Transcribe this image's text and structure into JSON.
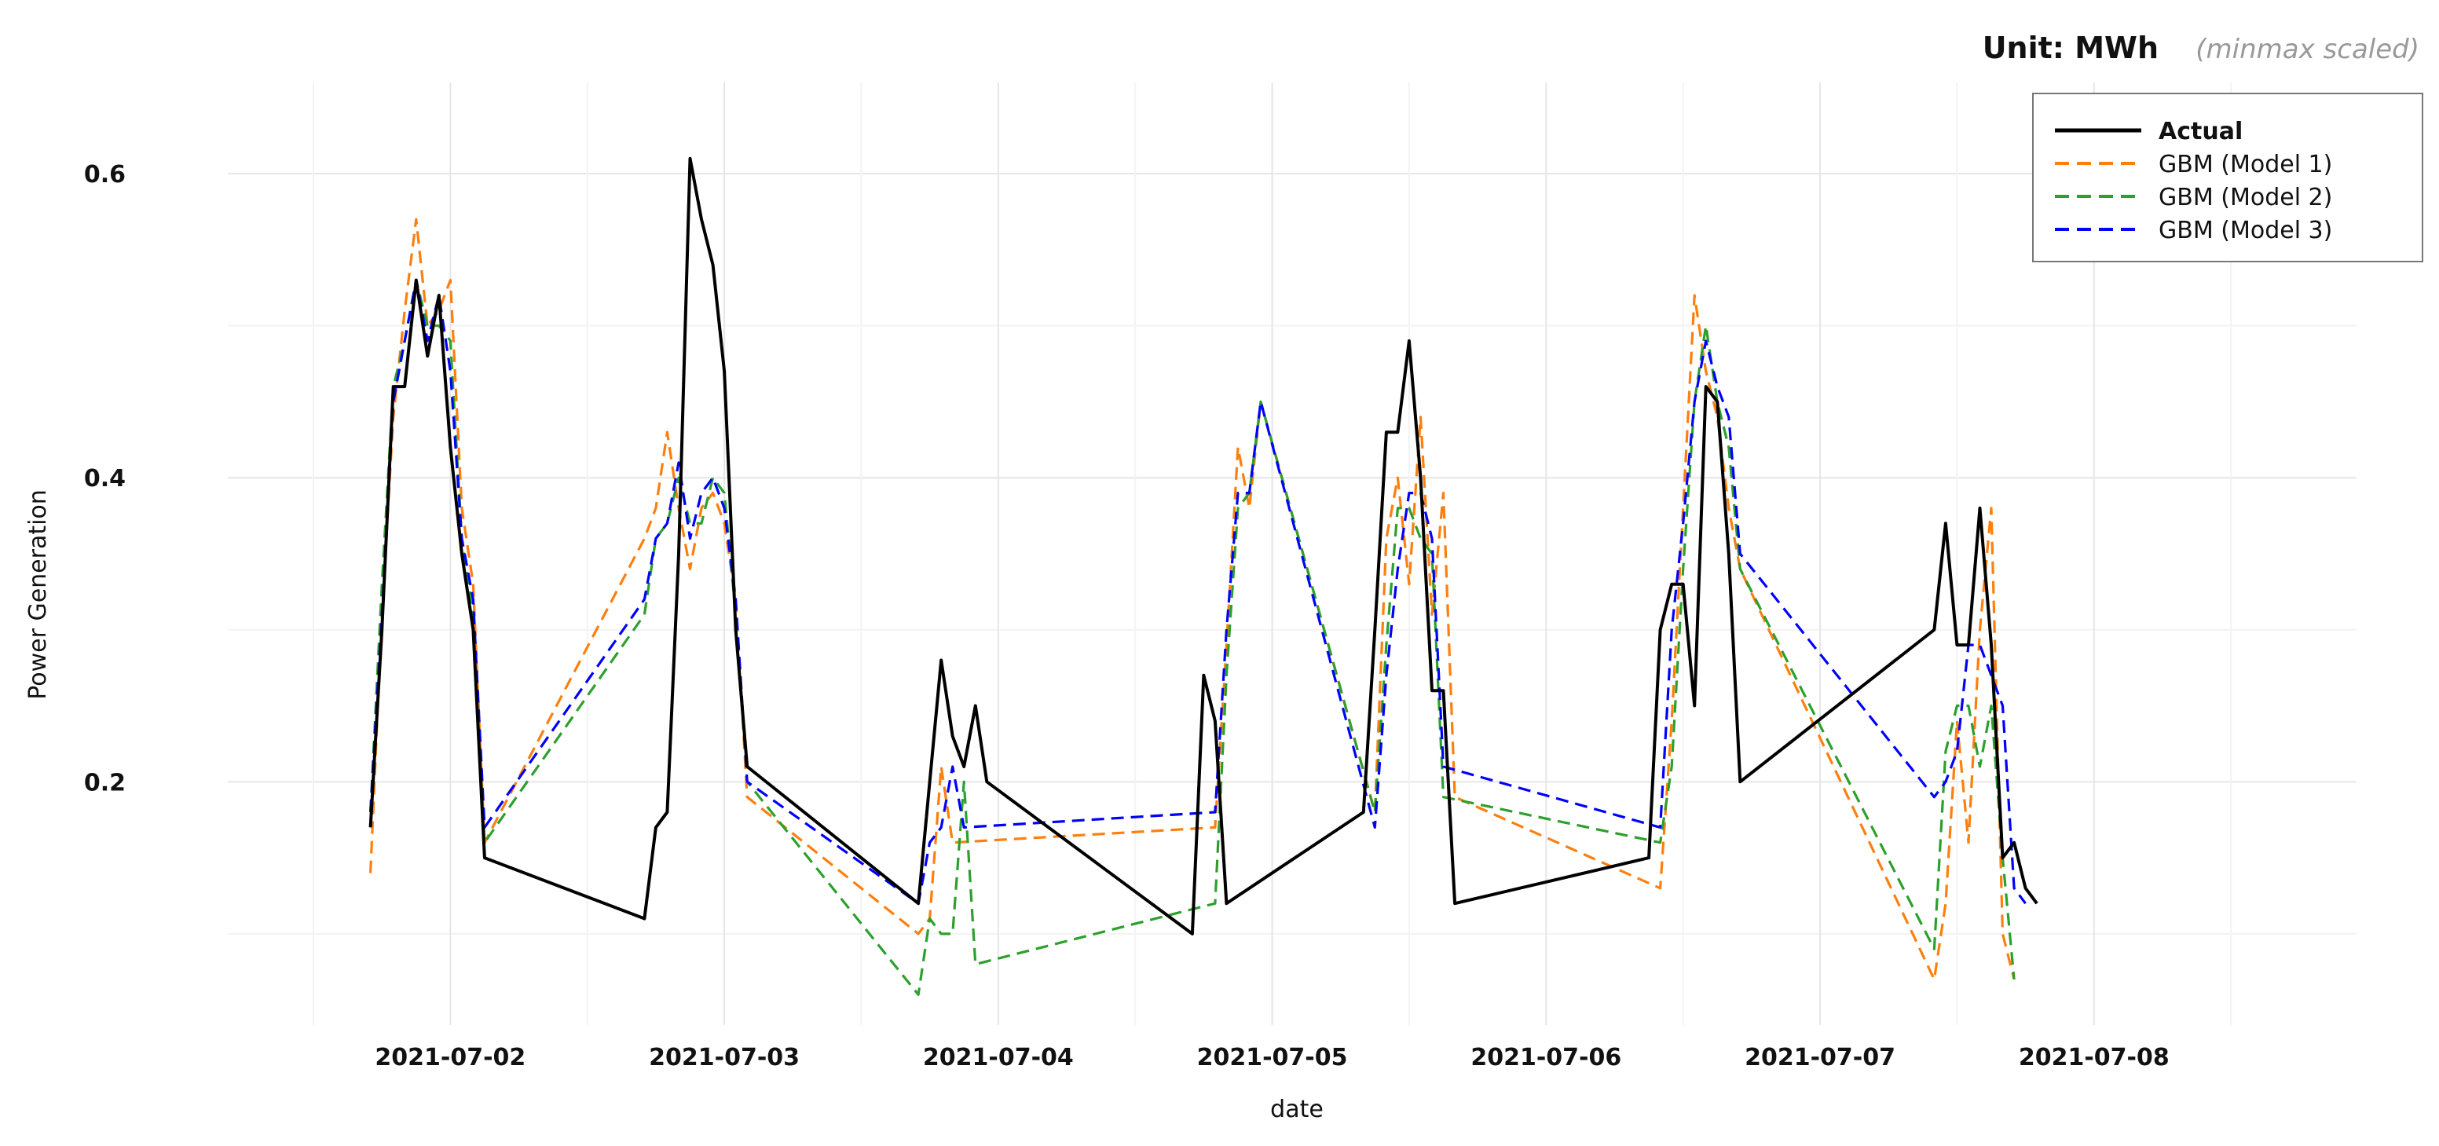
{
  "header": {
    "unit_label": "Unit: MWh",
    "unit_note": "(minmax scaled)"
  },
  "chart_data": {
    "type": "line",
    "title": "",
    "xlabel": "date",
    "ylabel": "Power Generation",
    "x_ticks": [
      "2021-07-02",
      "2021-07-03",
      "2021-07-04",
      "2021-07-05",
      "2021-07-06",
      "2021-07-07",
      "2021-07-08"
    ],
    "y_ticks": [
      "0.2",
      "0.4",
      "0.6"
    ],
    "y_tick_values": [
      0.2,
      0.4,
      0.6
    ],
    "xlim": [
      "2021-07-01 04:30",
      "2021-07-08 23:00"
    ],
    "ylim": [
      0.04,
      0.66
    ],
    "grid": true,
    "legend_position": "top-right",
    "series": [
      {
        "name": "Actual",
        "color": "#000000",
        "dash": "solid",
        "points": [
          [
            "2021-07-01 17:00",
            0.17
          ],
          [
            "2021-07-01 18:00",
            0.3
          ],
          [
            "2021-07-01 19:00",
            0.46
          ],
          [
            "2021-07-01 20:00",
            0.46
          ],
          [
            "2021-07-01 21:00",
            0.53
          ],
          [
            "2021-07-01 22:00",
            0.48
          ],
          [
            "2021-07-01 23:00",
            0.52
          ],
          [
            "2021-07-02 00:00",
            0.42
          ],
          [
            "2021-07-02 01:00",
            0.35
          ],
          [
            "2021-07-02 02:00",
            0.3
          ],
          [
            "2021-07-02 03:00",
            0.15
          ],
          [
            "2021-07-02 17:00",
            0.11
          ],
          [
            "2021-07-02 18:00",
            0.17
          ],
          [
            "2021-07-02 19:00",
            0.18
          ],
          [
            "2021-07-02 20:00",
            0.35
          ],
          [
            "2021-07-02 21:00",
            0.61
          ],
          [
            "2021-07-02 22:00",
            0.57
          ],
          [
            "2021-07-02 23:00",
            0.54
          ],
          [
            "2021-07-03 00:00",
            0.47
          ],
          [
            "2021-07-03 01:00",
            0.3
          ],
          [
            "2021-07-03 02:00",
            0.21
          ],
          [
            "2021-07-03 17:00",
            0.12
          ],
          [
            "2021-07-03 18:00",
            0.2
          ],
          [
            "2021-07-03 19:00",
            0.28
          ],
          [
            "2021-07-03 20:00",
            0.23
          ],
          [
            "2021-07-03 21:00",
            0.21
          ],
          [
            "2021-07-03 22:00",
            0.25
          ],
          [
            "2021-07-03 23:00",
            0.2
          ],
          [
            "2021-07-04 17:00",
            0.1
          ],
          [
            "2021-07-04 18:00",
            0.27
          ],
          [
            "2021-07-04 19:00",
            0.24
          ],
          [
            "2021-07-04 20:00",
            0.12
          ],
          [
            "2021-07-05 08:00",
            0.18
          ],
          [
            "2021-07-05 09:00",
            0.3
          ],
          [
            "2021-07-05 10:00",
            0.43
          ],
          [
            "2021-07-05 11:00",
            0.43
          ],
          [
            "2021-07-05 12:00",
            0.49
          ],
          [
            "2021-07-05 13:00",
            0.4
          ],
          [
            "2021-07-05 14:00",
            0.26
          ],
          [
            "2021-07-05 15:00",
            0.26
          ],
          [
            "2021-07-05 16:00",
            0.12
          ],
          [
            "2021-07-06 09:00",
            0.15
          ],
          [
            "2021-07-06 10:00",
            0.3
          ],
          [
            "2021-07-06 11:00",
            0.33
          ],
          [
            "2021-07-06 12:00",
            0.33
          ],
          [
            "2021-07-06 13:00",
            0.25
          ],
          [
            "2021-07-06 14:00",
            0.46
          ],
          [
            "2021-07-06 15:00",
            0.45
          ],
          [
            "2021-07-06 16:00",
            0.35
          ],
          [
            "2021-07-06 17:00",
            0.2
          ],
          [
            "2021-07-07 10:00",
            0.3
          ],
          [
            "2021-07-07 11:00",
            0.37
          ],
          [
            "2021-07-07 12:00",
            0.29
          ],
          [
            "2021-07-07 13:00",
            0.29
          ],
          [
            "2021-07-07 14:00",
            0.38
          ],
          [
            "2021-07-07 15:00",
            0.29
          ],
          [
            "2021-07-07 16:00",
            0.15
          ],
          [
            "2021-07-07 17:00",
            0.16
          ],
          [
            "2021-07-07 18:00",
            0.13
          ],
          [
            "2021-07-07 19:00",
            0.12
          ]
        ]
      },
      {
        "name": "GBM (Model 1)",
        "color": "#ff7f0e",
        "dash": "dashed",
        "points": [
          [
            "2021-07-01 17:00",
            0.14
          ],
          [
            "2021-07-01 18:00",
            0.31
          ],
          [
            "2021-07-01 19:00",
            0.44
          ],
          [
            "2021-07-01 20:00",
            0.51
          ],
          [
            "2021-07-01 21:00",
            0.57
          ],
          [
            "2021-07-01 22:00",
            0.5
          ],
          [
            "2021-07-01 23:00",
            0.51
          ],
          [
            "2021-07-02 00:00",
            0.53
          ],
          [
            "2021-07-02 01:00",
            0.38
          ],
          [
            "2021-07-02 02:00",
            0.33
          ],
          [
            "2021-07-02 03:00",
            0.16
          ],
          [
            "2021-07-02 17:00",
            0.36
          ],
          [
            "2021-07-02 18:00",
            0.38
          ],
          [
            "2021-07-02 19:00",
            0.43
          ],
          [
            "2021-07-02 20:00",
            0.38
          ],
          [
            "2021-07-02 21:00",
            0.34
          ],
          [
            "2021-07-02 22:00",
            0.38
          ],
          [
            "2021-07-02 23:00",
            0.39
          ],
          [
            "2021-07-03 00:00",
            0.37
          ],
          [
            "2021-07-03 01:00",
            0.32
          ],
          [
            "2021-07-03 02:00",
            0.19
          ],
          [
            "2021-07-03 17:00",
            0.1
          ],
          [
            "2021-07-03 18:00",
            0.11
          ],
          [
            "2021-07-03 19:00",
            0.21
          ],
          [
            "2021-07-03 20:00",
            0.16
          ],
          [
            "2021-07-04 19:00",
            0.17
          ],
          [
            "2021-07-04 20:00",
            0.29
          ],
          [
            "2021-07-04 21:00",
            0.42
          ],
          [
            "2021-07-04 22:00",
            0.38
          ],
          [
            "2021-07-04 23:00",
            0.45
          ],
          [
            "2021-07-05 09:00",
            0.18
          ],
          [
            "2021-07-05 10:00",
            0.36
          ],
          [
            "2021-07-05 11:00",
            0.4
          ],
          [
            "2021-07-05 12:00",
            0.33
          ],
          [
            "2021-07-05 13:00",
            0.44
          ],
          [
            "2021-07-05 14:00",
            0.31
          ],
          [
            "2021-07-05 15:00",
            0.39
          ],
          [
            "2021-07-05 16:00",
            0.19
          ],
          [
            "2021-07-06 10:00",
            0.13
          ],
          [
            "2021-07-06 11:00",
            0.24
          ],
          [
            "2021-07-06 12:00",
            0.38
          ],
          [
            "2021-07-06 13:00",
            0.52
          ],
          [
            "2021-07-06 14:00",
            0.47
          ],
          [
            "2021-07-06 15:00",
            0.44
          ],
          [
            "2021-07-06 16:00",
            0.38
          ],
          [
            "2021-07-06 17:00",
            0.34
          ],
          [
            "2021-07-07 10:00",
            0.07
          ],
          [
            "2021-07-07 11:00",
            0.12
          ],
          [
            "2021-07-07 12:00",
            0.24
          ],
          [
            "2021-07-07 13:00",
            0.16
          ],
          [
            "2021-07-07 14:00",
            0.3
          ],
          [
            "2021-07-07 15:00",
            0.38
          ],
          [
            "2021-07-07 16:00",
            0.1
          ],
          [
            "2021-07-07 17:00",
            0.07
          ]
        ]
      },
      {
        "name": "GBM (Model 2)",
        "color": "#2ca02c",
        "dash": "dashed",
        "points": [
          [
            "2021-07-01 17:00",
            0.18
          ],
          [
            "2021-07-01 18:00",
            0.33
          ],
          [
            "2021-07-01 19:00",
            0.46
          ],
          [
            "2021-07-01 20:00",
            0.49
          ],
          [
            "2021-07-01 21:00",
            0.53
          ],
          [
            "2021-07-01 22:00",
            0.5
          ],
          [
            "2021-07-01 23:00",
            0.5
          ],
          [
            "2021-07-02 00:00",
            0.49
          ],
          [
            "2021-07-02 01:00",
            0.36
          ],
          [
            "2021-07-02 02:00",
            0.31
          ],
          [
            "2021-07-02 03:00",
            0.16
          ],
          [
            "2021-07-02 17:00",
            0.31
          ],
          [
            "2021-07-02 18:00",
            0.36
          ],
          [
            "2021-07-02 19:00",
            0.37
          ],
          [
            "2021-07-02 20:00",
            0.4
          ],
          [
            "2021-07-02 21:00",
            0.37
          ],
          [
            "2021-07-02 22:00",
            0.37
          ],
          [
            "2021-07-02 23:00",
            0.4
          ],
          [
            "2021-07-03 00:00",
            0.39
          ],
          [
            "2021-07-03 01:00",
            0.31
          ],
          [
            "2021-07-03 02:00",
            0.2
          ],
          [
            "2021-07-03 17:00",
            0.06
          ],
          [
            "2021-07-03 18:00",
            0.11
          ],
          [
            "2021-07-03 19:00",
            0.1
          ],
          [
            "2021-07-03 20:00",
            0.1
          ],
          [
            "2021-07-03 21:00",
            0.2
          ],
          [
            "2021-07-03 22:00",
            0.08
          ],
          [
            "2021-07-04 19:00",
            0.12
          ],
          [
            "2021-07-04 20:00",
            0.27
          ],
          [
            "2021-07-04 21:00",
            0.38
          ],
          [
            "2021-07-04 22:00",
            0.39
          ],
          [
            "2021-07-04 23:00",
            0.45
          ],
          [
            "2021-07-05 09:00",
            0.18
          ],
          [
            "2021-07-05 10:00",
            0.29
          ],
          [
            "2021-07-05 11:00",
            0.38
          ],
          [
            "2021-07-05 12:00",
            0.38
          ],
          [
            "2021-07-05 13:00",
            0.36
          ],
          [
            "2021-07-05 14:00",
            0.35
          ],
          [
            "2021-07-05 15:00",
            0.19
          ],
          [
            "2021-07-06 10:00",
            0.16
          ],
          [
            "2021-07-06 11:00",
            0.21
          ],
          [
            "2021-07-06 12:00",
            0.34
          ],
          [
            "2021-07-06 13:00",
            0.45
          ],
          [
            "2021-07-06 14:00",
            0.5
          ],
          [
            "2021-07-06 15:00",
            0.45
          ],
          [
            "2021-07-06 16:00",
            0.42
          ],
          [
            "2021-07-06 17:00",
            0.34
          ],
          [
            "2021-07-07 10:00",
            0.09
          ],
          [
            "2021-07-07 11:00",
            0.22
          ],
          [
            "2021-07-07 12:00",
            0.25
          ],
          [
            "2021-07-07 13:00",
            0.25
          ],
          [
            "2021-07-07 14:00",
            0.21
          ],
          [
            "2021-07-07 15:00",
            0.25
          ],
          [
            "2021-07-07 16:00",
            0.15
          ],
          [
            "2021-07-07 17:00",
            0.07
          ]
        ]
      },
      {
        "name": "GBM (Model 3)",
        "color": "#0000ff",
        "dash": "dashed",
        "points": [
          [
            "2021-07-01 17:00",
            0.18
          ],
          [
            "2021-07-01 18:00",
            0.31
          ],
          [
            "2021-07-01 19:00",
            0.45
          ],
          [
            "2021-07-01 20:00",
            0.49
          ],
          [
            "2021-07-01 21:00",
            0.53
          ],
          [
            "2021-07-01 22:00",
            0.49
          ],
          [
            "2021-07-01 23:00",
            0.52
          ],
          [
            "2021-07-02 00:00",
            0.47
          ],
          [
            "2021-07-02 01:00",
            0.36
          ],
          [
            "2021-07-02 02:00",
            0.32
          ],
          [
            "2021-07-02 03:00",
            0.17
          ],
          [
            "2021-07-02 17:00",
            0.32
          ],
          [
            "2021-07-02 18:00",
            0.36
          ],
          [
            "2021-07-02 19:00",
            0.37
          ],
          [
            "2021-07-02 20:00",
            0.41
          ],
          [
            "2021-07-02 21:00",
            0.36
          ],
          [
            "2021-07-02 22:00",
            0.39
          ],
          [
            "2021-07-02 23:00",
            0.4
          ],
          [
            "2021-07-03 00:00",
            0.38
          ],
          [
            "2021-07-03 01:00",
            0.32
          ],
          [
            "2021-07-03 02:00",
            0.2
          ],
          [
            "2021-07-03 17:00",
            0.12
          ],
          [
            "2021-07-03 18:00",
            0.16
          ],
          [
            "2021-07-03 19:00",
            0.17
          ],
          [
            "2021-07-03 20:00",
            0.21
          ],
          [
            "2021-07-03 21:00",
            0.17
          ],
          [
            "2021-07-04 19:00",
            0.18
          ],
          [
            "2021-07-04 20:00",
            0.3
          ],
          [
            "2021-07-04 21:00",
            0.39
          ],
          [
            "2021-07-04 22:00",
            0.39
          ],
          [
            "2021-07-04 23:00",
            0.45
          ],
          [
            "2021-07-05 09:00",
            0.17
          ],
          [
            "2021-07-05 10:00",
            0.27
          ],
          [
            "2021-07-05 11:00",
            0.34
          ],
          [
            "2021-07-05 12:00",
            0.39
          ],
          [
            "2021-07-05 13:00",
            0.39
          ],
          [
            "2021-07-05 14:00",
            0.36
          ],
          [
            "2021-07-05 15:00",
            0.21
          ],
          [
            "2021-07-06 10:00",
            0.17
          ],
          [
            "2021-07-06 11:00",
            0.3
          ],
          [
            "2021-07-06 12:00",
            0.37
          ],
          [
            "2021-07-06 13:00",
            0.45
          ],
          [
            "2021-07-06 14:00",
            0.49
          ],
          [
            "2021-07-06 15:00",
            0.46
          ],
          [
            "2021-07-06 16:00",
            0.44
          ],
          [
            "2021-07-06 17:00",
            0.35
          ],
          [
            "2021-07-07 10:00",
            0.19
          ],
          [
            "2021-07-07 11:00",
            0.2
          ],
          [
            "2021-07-07 12:00",
            0.22
          ],
          [
            "2021-07-07 13:00",
            0.29
          ],
          [
            "2021-07-07 14:00",
            0.29
          ],
          [
            "2021-07-07 15:00",
            0.27
          ],
          [
            "2021-07-07 16:00",
            0.25
          ],
          [
            "2021-07-07 17:00",
            0.13
          ],
          [
            "2021-07-07 18:00",
            0.12
          ]
        ]
      }
    ]
  }
}
